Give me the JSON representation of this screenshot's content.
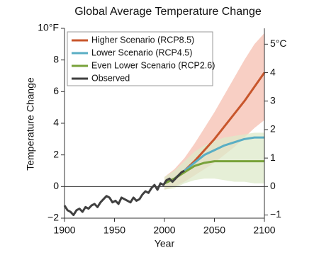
{
  "chart_data": {
    "type": "line",
    "title": "Global Average Temperature Change",
    "x_label": "Year",
    "y_label": "Temperature Change",
    "xlim": [
      1900,
      2100
    ],
    "xticks": [
      1900,
      1950,
      2000,
      2050,
      2100
    ],
    "ylim": [
      -2,
      10
    ],
    "yticks": [
      {
        "value": -2,
        "label": "−2"
      },
      0,
      2,
      4,
      6,
      8,
      {
        "value": 10,
        "label": "10°F"
      }
    ],
    "y2lim": [
      -1.111,
      5.556
    ],
    "y2ticks": [
      {
        "value": -1,
        "label": "−1"
      },
      0,
      1,
      2,
      3,
      4,
      {
        "value": 5,
        "label": "5°C"
      }
    ],
    "zero_line": true,
    "legend": "upper left",
    "series": [
      {
        "name": "Higher Scenario (RCP8.5)",
        "color": "#c8562c",
        "band_color": "#f6bfb0",
        "x": [
          2000,
          2010,
          2020,
          2030,
          2040,
          2050,
          2060,
          2070,
          2080,
          2090,
          2100
        ],
        "values": [
          0.2,
          0.5,
          1.0,
          1.6,
          2.3,
          3.0,
          3.8,
          4.6,
          5.4,
          6.3,
          7.2
        ],
        "band": {
          "high": [
            0.6,
            1.1,
            1.8,
            2.7,
            3.7,
            4.7,
            5.8,
            6.9,
            8.0,
            9.0,
            9.7
          ],
          "low": [
            -0.2,
            0.0,
            0.3,
            0.7,
            1.1,
            1.5,
            2.0,
            2.5,
            3.1,
            3.7,
            4.2
          ]
        }
      },
      {
        "name": "Lower Scenario (RCP4.5)",
        "color": "#5aaec4",
        "x": [
          2000,
          2010,
          2020,
          2030,
          2040,
          2050,
          2060,
          2070,
          2080,
          2090,
          2100
        ],
        "values": [
          0.2,
          0.5,
          1.0,
          1.5,
          2.0,
          2.3,
          2.6,
          2.8,
          3.0,
          3.1,
          3.1
        ]
      },
      {
        "name": "Even Lower Scenario (RCP2.6)",
        "color": "#78a23a",
        "band_color": "#dde9c9",
        "x": [
          2000,
          2010,
          2020,
          2030,
          2040,
          2050,
          2060,
          2070,
          2080,
          2090,
          2100
        ],
        "values": [
          0.2,
          0.5,
          0.9,
          1.3,
          1.5,
          1.6,
          1.6,
          1.6,
          1.6,
          1.6,
          1.6
        ],
        "band": {
          "high": [
            0.6,
            1.0,
            1.6,
            2.2,
            2.6,
            2.9,
            3.1,
            3.2,
            3.3,
            3.4,
            3.4
          ],
          "low": [
            -0.2,
            -0.1,
            0.2,
            0.4,
            0.5,
            0.5,
            0.4,
            0.3,
            0.3,
            0.2,
            0.2
          ]
        }
      },
      {
        "name": "Observed",
        "color": "#404040",
        "x": [
          1900,
          1903,
          1906,
          1909,
          1912,
          1915,
          1918,
          1921,
          1924,
          1927,
          1930,
          1933,
          1936,
          1939,
          1942,
          1945,
          1948,
          1951,
          1954,
          1957,
          1960,
          1963,
          1966,
          1969,
          1972,
          1975,
          1978,
          1981,
          1984,
          1987,
          1990,
          1993,
          1996,
          1999,
          2002,
          2005,
          2008,
          2011,
          2014,
          2017,
          2020
        ],
        "values": [
          -1.2,
          -1.5,
          -1.6,
          -1.8,
          -1.5,
          -1.4,
          -1.6,
          -1.3,
          -1.4,
          -1.2,
          -1.1,
          -1.3,
          -1.0,
          -0.8,
          -0.6,
          -0.7,
          -1.0,
          -0.9,
          -1.1,
          -0.7,
          -0.8,
          -0.9,
          -1.0,
          -0.7,
          -0.9,
          -0.8,
          -0.5,
          -0.3,
          -0.4,
          -0.1,
          0.1,
          -0.2,
          0.2,
          0.1,
          0.4,
          0.5,
          0.3,
          0.5,
          0.7,
          0.9,
          1.0
        ]
      }
    ]
  }
}
